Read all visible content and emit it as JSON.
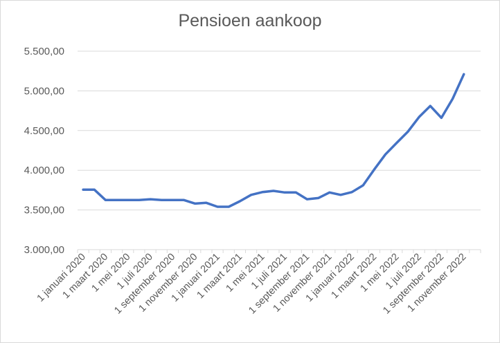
{
  "chart_data": {
    "type": "line",
    "title": "Pensioen aankoop",
    "xlabel": "",
    "ylabel": "",
    "ylim": [
      3000,
      5500
    ],
    "y_ticks": [
      "3.000,00",
      "3.500,00",
      "4.000,00",
      "4.500,00",
      "5.000,00",
      "5.500,00"
    ],
    "y_tick_values": [
      3000,
      3500,
      4000,
      4500,
      5000,
      5500
    ],
    "x_tick_labels": [
      "1 januari 2020",
      "1 maart 2020",
      "1 mei 2020",
      "1 juli 2020",
      "1 september 2020",
      "1 november 2020",
      "1 januari 2021",
      "1 maart 2021",
      "1 mei 2021",
      "1 juli 2021",
      "1 september 2021",
      "1 november 2021",
      "1 januari 2022",
      "1 maart 2022",
      "1 mei 2022",
      "1 juli 2022",
      "1 september 2022",
      "1 november 2022"
    ],
    "grid": true,
    "legend": "none",
    "line_color": "#4472c4",
    "x": [
      "2020-01",
      "2020-02",
      "2020-03",
      "2020-04",
      "2020-05",
      "2020-06",
      "2020-07",
      "2020-08",
      "2020-09",
      "2020-10",
      "2020-11",
      "2020-12",
      "2021-01",
      "2021-02",
      "2021-03",
      "2021-04",
      "2021-05",
      "2021-06",
      "2021-07",
      "2021-08",
      "2021-09",
      "2021-10",
      "2021-11",
      "2021-12",
      "2022-01",
      "2022-02",
      "2022-03",
      "2022-04",
      "2022-05",
      "2022-06",
      "2022-07",
      "2022-08",
      "2022-09",
      "2022-10",
      "2022-11",
      "2022-12"
    ],
    "values": [
      3755,
      3755,
      3625,
      3625,
      3625,
      3625,
      3635,
      3625,
      3625,
      3625,
      3580,
      3590,
      3540,
      3540,
      3610,
      3690,
      3725,
      3740,
      3720,
      3720,
      3635,
      3650,
      3720,
      3690,
      3725,
      3810,
      4010,
      4200,
      4345,
      4485,
      4670,
      4810,
      4660,
      4900,
      5210,
      null
    ]
  }
}
